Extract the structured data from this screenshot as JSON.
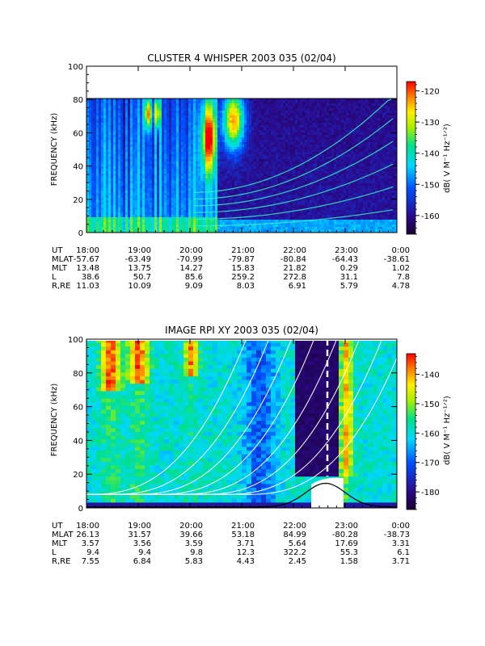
{
  "chart_data": [
    {
      "type": "heatmap",
      "title": "CLUSTER 4 WHISPER 2003 035 (02/04)",
      "ylabel": "FREQUENCY (kHz)",
      "ylim": [
        0,
        100
      ],
      "yticks": [
        "0",
        "20",
        "40",
        "60",
        "80",
        "100"
      ],
      "xlim": [
        "18:00",
        "0:00"
      ],
      "data_frequency_max": 80,
      "colorbar": {
        "label": "dB( V M⁻¹ Hz⁻¹ᐟ²)",
        "range": [
          -166,
          -117
        ],
        "ticks": [
          "-120",
          "-130",
          "-140",
          "-150",
          "-160"
        ],
        "ticks_values": [
          -120,
          -130,
          -140,
          -150,
          -160
        ]
      },
      "ephemeris": {
        "rows": [
          {
            "label": "UT",
            "values": [
              "18:00",
              "19:00",
              "20:00",
              "21:00",
              "22:00",
              "23:00",
              "0:00"
            ]
          },
          {
            "label": "MLAT",
            "values": [
              "-57.67",
              "-63.49",
              "-70.99",
              "-79.87",
              "-80.84",
              "-64.43",
              "-38.61"
            ]
          },
          {
            "label": "MLT",
            "values": [
              "13.48",
              "13.75",
              "14.27",
              "15.83",
              "21.82",
              "0.29",
              "1.02"
            ]
          },
          {
            "label": "L",
            "values": [
              "38.6",
              "50.7",
              "85.6",
              "259.2",
              "272.8",
              "31.1",
              "7.8"
            ]
          },
          {
            "label": "R,RE",
            "values": [
              "11.03",
              "10.09",
              "9.09",
              "8.03",
              "6.91",
              "5.79",
              "4.78"
            ]
          }
        ]
      }
    },
    {
      "type": "heatmap",
      "title": "IMAGE RPI XY 2003 035 (02/04)",
      "ylabel": "FREQUENCY (kHz)",
      "ylim": [
        0,
        100
      ],
      "yticks": [
        "0",
        "20",
        "40",
        "60",
        "80",
        "100"
      ],
      "xlim": [
        "18:00",
        "0:00"
      ],
      "colorbar": {
        "label": "dB( V M⁻¹ Hz⁻¹ᐟ²)",
        "range": [
          -186,
          -133
        ],
        "ticks": [
          "-140",
          "-150",
          "-160",
          "-170",
          "-180"
        ],
        "ticks_values": [
          -140,
          -150,
          -160,
          -170,
          -180
        ]
      },
      "ephemeris": {
        "rows": [
          {
            "label": "UT",
            "values": [
              "18:00",
              "19:00",
              "20:00",
              "21:00",
              "22:00",
              "23:00",
              "0:00"
            ]
          },
          {
            "label": "MLAT",
            "values": [
              "26.13",
              "31.57",
              "39.66",
              "53.18",
              "84.99",
              "-80.28",
              "-38.73"
            ]
          },
          {
            "label": "MLT",
            "values": [
              "3.57",
              "3.56",
              "3.59",
              "3.71",
              "5.64",
              "17.69",
              "3.31"
            ]
          },
          {
            "label": "L",
            "values": [
              "9.4",
              "9.4",
              "9.8",
              "12.3",
              "322.2",
              "55.3",
              "6.1"
            ]
          },
          {
            "label": "R,RE",
            "values": [
              "7.55",
              "6.84",
              "5.83",
              "4.43",
              "2.45",
              "1.58",
              "3.71"
            ]
          }
        ]
      }
    }
  ]
}
